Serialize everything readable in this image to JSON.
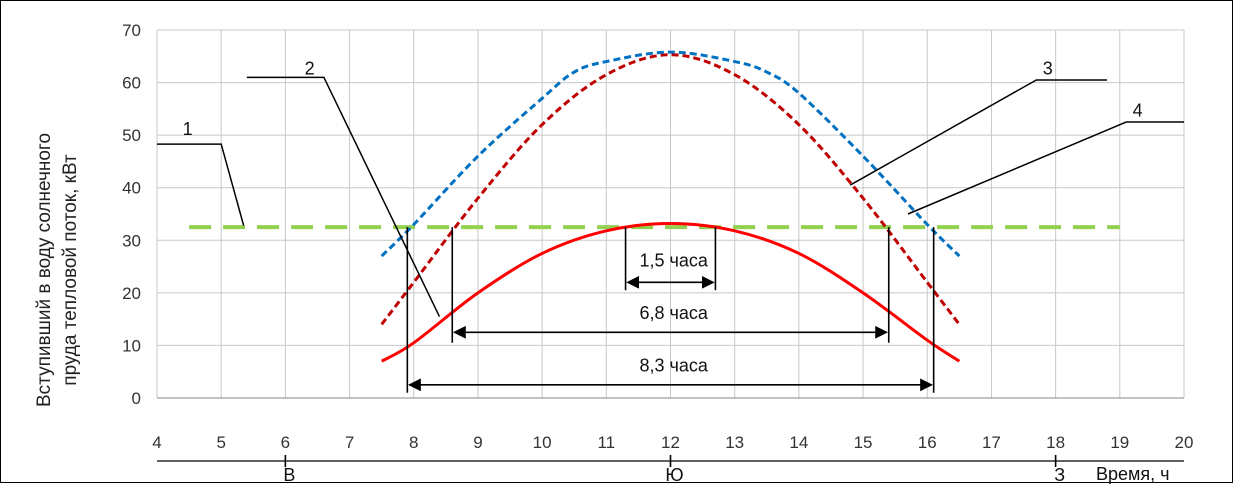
{
  "chart_data": {
    "type": "line",
    "ylabel_lines": [
      "Вступивший в воду солнечного",
      "пруда тепловой поток, кВт"
    ],
    "xlabel": "Время, ч",
    "xlim": [
      4,
      20
    ],
    "ylim": [
      0,
      70
    ],
    "x_ticks": [
      "4",
      "5",
      "6",
      "7",
      "8",
      "9",
      "10",
      "11",
      "12",
      "13",
      "14",
      "15",
      "16",
      "17",
      "18",
      "19",
      "20"
    ],
    "y_ticks": [
      "0",
      "10",
      "20",
      "30",
      "40",
      "50",
      "60",
      "70"
    ],
    "grid": true,
    "directions": [
      {
        "label": "В",
        "x": 6
      },
      {
        "label": "Ю",
        "x": 12
      },
      {
        "label": "З",
        "x": 18
      }
    ],
    "series": [
      {
        "id": "1",
        "color": "#92d050",
        "style": "dashed",
        "points": [
          [
            4.5,
            32.5
          ],
          [
            19,
            32.5
          ]
        ]
      },
      {
        "id": "2",
        "color": "#ff0000",
        "style": "solid",
        "points": [
          [
            7.5,
            7
          ],
          [
            8,
            10.5
          ],
          [
            9,
            20
          ],
          [
            10,
            27.5
          ],
          [
            11,
            31.8
          ],
          [
            12,
            33.2
          ],
          [
            13,
            31.8
          ],
          [
            14,
            27.5
          ],
          [
            15,
            20
          ],
          [
            16,
            11
          ],
          [
            16.5,
            7
          ]
        ]
      },
      {
        "id": "3",
        "color": "#c00000",
        "style": "dashed",
        "points": [
          [
            7.5,
            14
          ],
          [
            8,
            22
          ],
          [
            9,
            38
          ],
          [
            10,
            52
          ],
          [
            11,
            61.5
          ],
          [
            12,
            65.3
          ],
          [
            13,
            61.5
          ],
          [
            14,
            52
          ],
          [
            15,
            38
          ],
          [
            16,
            22
          ],
          [
            16.5,
            14
          ]
        ]
      },
      {
        "id": "4",
        "color": "#0070c0",
        "style": "dashed",
        "points": [
          [
            7.5,
            27
          ],
          [
            8,
            33
          ],
          [
            9,
            46
          ],
          [
            10,
            57
          ],
          [
            10.5,
            62
          ],
          [
            11,
            64
          ],
          [
            12,
            65.8
          ],
          [
            13,
            64
          ],
          [
            13.5,
            62
          ],
          [
            14,
            58
          ],
          [
            15,
            46
          ],
          [
            16,
            33
          ],
          [
            16.5,
            27
          ]
        ]
      }
    ],
    "series_labels": [
      {
        "text": "1",
        "label_at": [
          4.4,
          50
        ],
        "leader": [
          [
            4,
            48.3
          ],
          [
            5,
            48.3
          ],
          [
            5.35,
            32.8
          ]
        ]
      },
      {
        "text": "2",
        "label_at": [
          6.3,
          61.5
        ],
        "leader": [
          [
            5.4,
            61
          ],
          [
            6.6,
            61
          ],
          [
            8.4,
            15.5
          ]
        ]
      },
      {
        "text": "3",
        "label_at": [
          17.8,
          61.5
        ],
        "leader": [
          [
            18.8,
            60.5
          ],
          [
            17.7,
            60.5
          ],
          [
            14.8,
            40.5
          ]
        ]
      },
      {
        "text": "4",
        "label_at": [
          19.2,
          53.5
        ],
        "leader": [
          [
            20,
            52.5
          ],
          [
            19.1,
            52.5
          ],
          [
            15.7,
            35
          ]
        ]
      }
    ],
    "durations": [
      {
        "label": "1,5 часа",
        "x_from": 11.3,
        "x_to": 12.7,
        "y_arrow": 22,
        "y_top": 32.5,
        "label_x": 12.05,
        "label_y": 25
      },
      {
        "label": "6,8 часа",
        "x_from": 8.6,
        "x_to": 15.4,
        "y_arrow": 12.5,
        "y_top": 32.5,
        "y_bottom": 10.5,
        "label_x": 12.05,
        "label_y": 15
      },
      {
        "label": "8,3 часа",
        "x_from": 7.9,
        "x_to": 16.1,
        "y_arrow": 2.5,
        "y_top": 32.5,
        "y_bottom": 1,
        "label_x": 12.05,
        "label_y": 5
      }
    ]
  }
}
